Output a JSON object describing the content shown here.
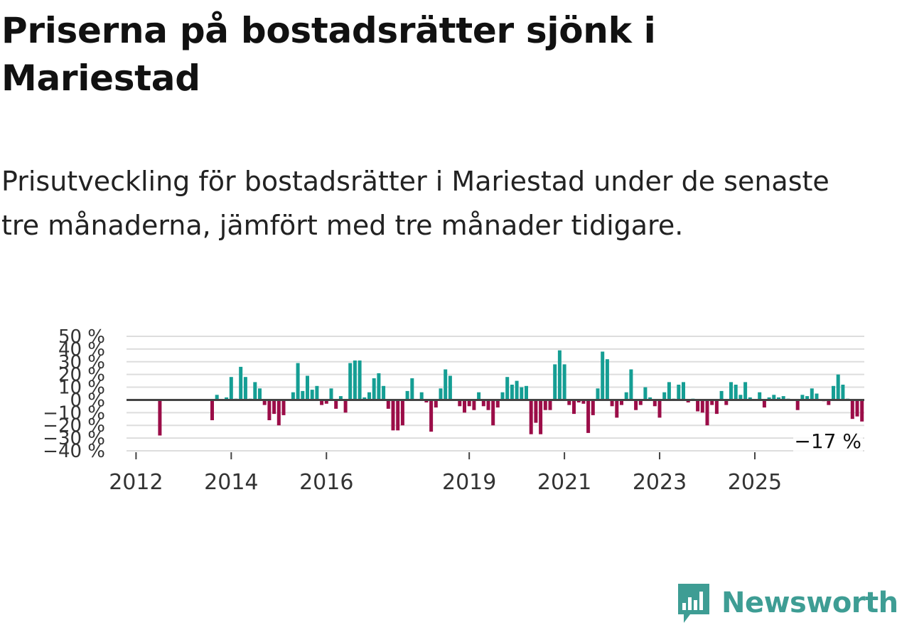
{
  "title": "Priserna på bostadsrätter sjönk i Mariestad",
  "subtitle": "Prisutveckling för bostadsrätter i Mariestad under de senaste tre månaderna, jämfört med tre månader tidigare.",
  "logo": {
    "text": "Newsworthy",
    "icon": "bar-chart-speech-bubble-icon",
    "color": "#3e9d94"
  },
  "colors": {
    "positive": "#159e94",
    "negative": "#9b0d48",
    "zero_line": "#444444",
    "grid": "#dddddd"
  },
  "chart_data": {
    "type": "bar",
    "title": "",
    "xlabel": "",
    "ylabel": "",
    "ylim": [
      -40,
      50
    ],
    "y_ticks": [
      {
        "value": 50,
        "label": "50 %"
      },
      {
        "value": 40,
        "label": "40 %"
      },
      {
        "value": 30,
        "label": "30 %"
      },
      {
        "value": 20,
        "label": "20 %"
      },
      {
        "value": 10,
        "label": "10 %"
      },
      {
        "value": 0,
        "label": "0 %"
      },
      {
        "value": -10,
        "label": "−10 %"
      },
      {
        "value": -20,
        "label": "−20 %"
      },
      {
        "value": -30,
        "label": "−30 %"
      },
      {
        "value": -40,
        "label": "−40 %"
      }
    ],
    "x_ticks": [
      {
        "value": 2012.0,
        "label": "2012"
      },
      {
        "value": 2014.0,
        "label": "2014"
      },
      {
        "value": 2016.0,
        "label": "2016"
      },
      {
        "value": 2019.0,
        "label": "2019"
      },
      {
        "value": 2021.0,
        "label": "2021"
      },
      {
        "value": 2023.0,
        "label": "2023"
      },
      {
        "value": 2025.0,
        "label": "2025"
      }
    ],
    "xlim": [
      2011.8,
      2027.3
    ],
    "last_value_label": "−17 %",
    "series": [
      {
        "name": "Prisutveckling",
        "points": [
          [
            2012.5,
            -28
          ],
          [
            2013.6,
            -16
          ],
          [
            2013.7,
            4
          ],
          [
            2013.9,
            2
          ],
          [
            2014.0,
            18
          ],
          [
            2014.1,
            1
          ],
          [
            2014.2,
            26
          ],
          [
            2014.3,
            18
          ],
          [
            2014.4,
            1
          ],
          [
            2014.5,
            14
          ],
          [
            2014.6,
            9
          ],
          [
            2014.7,
            -4
          ],
          [
            2014.8,
            -16
          ],
          [
            2014.9,
            -11
          ],
          [
            2015.0,
            -20
          ],
          [
            2015.1,
            -12
          ],
          [
            2015.3,
            6
          ],
          [
            2015.4,
            29
          ],
          [
            2015.5,
            7
          ],
          [
            2015.6,
            19
          ],
          [
            2015.7,
            8
          ],
          [
            2015.8,
            11
          ],
          [
            2015.9,
            -4
          ],
          [
            2016.0,
            -3
          ],
          [
            2016.1,
            9
          ],
          [
            2016.2,
            -7
          ],
          [
            2016.3,
            3
          ],
          [
            2016.4,
            -10
          ],
          [
            2016.5,
            29
          ],
          [
            2016.6,
            31
          ],
          [
            2016.7,
            31
          ],
          [
            2016.8,
            2
          ],
          [
            2016.9,
            6
          ],
          [
            2017.0,
            17
          ],
          [
            2017.1,
            21
          ],
          [
            2017.2,
            11
          ],
          [
            2017.3,
            -7
          ],
          [
            2017.4,
            -24
          ],
          [
            2017.5,
            -24
          ],
          [
            2017.6,
            -20
          ],
          [
            2017.7,
            7
          ],
          [
            2017.8,
            17
          ],
          [
            2018.0,
            6
          ],
          [
            2018.1,
            -2
          ],
          [
            2018.2,
            -25
          ],
          [
            2018.3,
            -6
          ],
          [
            2018.4,
            9
          ],
          [
            2018.5,
            24
          ],
          [
            2018.6,
            19
          ],
          [
            2018.8,
            -5
          ],
          [
            2018.9,
            -10
          ],
          [
            2019.0,
            -5
          ],
          [
            2019.1,
            -8
          ],
          [
            2019.2,
            6
          ],
          [
            2019.3,
            -5
          ],
          [
            2019.4,
            -8
          ],
          [
            2019.5,
            -20
          ],
          [
            2019.6,
            -6
          ],
          [
            2019.7,
            6
          ],
          [
            2019.8,
            18
          ],
          [
            2019.9,
            12
          ],
          [
            2020.0,
            15
          ],
          [
            2020.1,
            10
          ],
          [
            2020.2,
            11
          ],
          [
            2020.3,
            -27
          ],
          [
            2020.4,
            -18
          ],
          [
            2020.5,
            -27
          ],
          [
            2020.6,
            -8
          ],
          [
            2020.7,
            -8
          ],
          [
            2020.8,
            28
          ],
          [
            2020.9,
            39
          ],
          [
            2021.0,
            28
          ],
          [
            2021.1,
            -4
          ],
          [
            2021.2,
            -11
          ],
          [
            2021.3,
            -2
          ],
          [
            2021.4,
            -3
          ],
          [
            2021.5,
            -26
          ],
          [
            2021.6,
            -12
          ],
          [
            2021.7,
            9
          ],
          [
            2021.8,
            38
          ],
          [
            2021.9,
            32
          ],
          [
            2022.0,
            -5
          ],
          [
            2022.1,
            -14
          ],
          [
            2022.2,
            -4
          ],
          [
            2022.3,
            6
          ],
          [
            2022.4,
            24
          ],
          [
            2022.5,
            -8
          ],
          [
            2022.6,
            -4
          ],
          [
            2022.7,
            10
          ],
          [
            2022.8,
            2
          ],
          [
            2022.9,
            -5
          ],
          [
            2023.0,
            -14
          ],
          [
            2023.1,
            6
          ],
          [
            2023.2,
            14
          ],
          [
            2023.3,
            1
          ],
          [
            2023.4,
            12
          ],
          [
            2023.5,
            14
          ],
          [
            2023.6,
            -2
          ],
          [
            2023.7,
            1
          ],
          [
            2023.8,
            -9
          ],
          [
            2023.9,
            -10
          ],
          [
            2024.0,
            -20
          ],
          [
            2024.1,
            -4
          ],
          [
            2024.2,
            -11
          ],
          [
            2024.3,
            7
          ],
          [
            2024.4,
            -4
          ],
          [
            2024.5,
            14
          ],
          [
            2024.6,
            12
          ],
          [
            2024.7,
            4
          ],
          [
            2024.8,
            14
          ],
          [
            2024.9,
            2
          ],
          [
            2025.1,
            6
          ],
          [
            2025.2,
            -6
          ],
          [
            2025.3,
            2
          ],
          [
            2025.4,
            4
          ],
          [
            2025.5,
            2
          ],
          [
            2025.6,
            3
          ],
          [
            2025.7,
            1
          ],
          [
            2025.9,
            -8
          ],
          [
            2026.0,
            4
          ],
          [
            2026.1,
            3
          ],
          [
            2026.2,
            9
          ],
          [
            2026.3,
            5
          ],
          [
            2026.45,
            -1
          ],
          [
            2026.55,
            -4
          ],
          [
            2026.65,
            11
          ],
          [
            2026.75,
            20
          ],
          [
            2026.85,
            12
          ],
          [
            2026.95,
            1
          ],
          [
            2027.05,
            -15
          ],
          [
            2027.15,
            -13
          ],
          [
            2027.25,
            -17
          ]
        ]
      }
    ]
  }
}
